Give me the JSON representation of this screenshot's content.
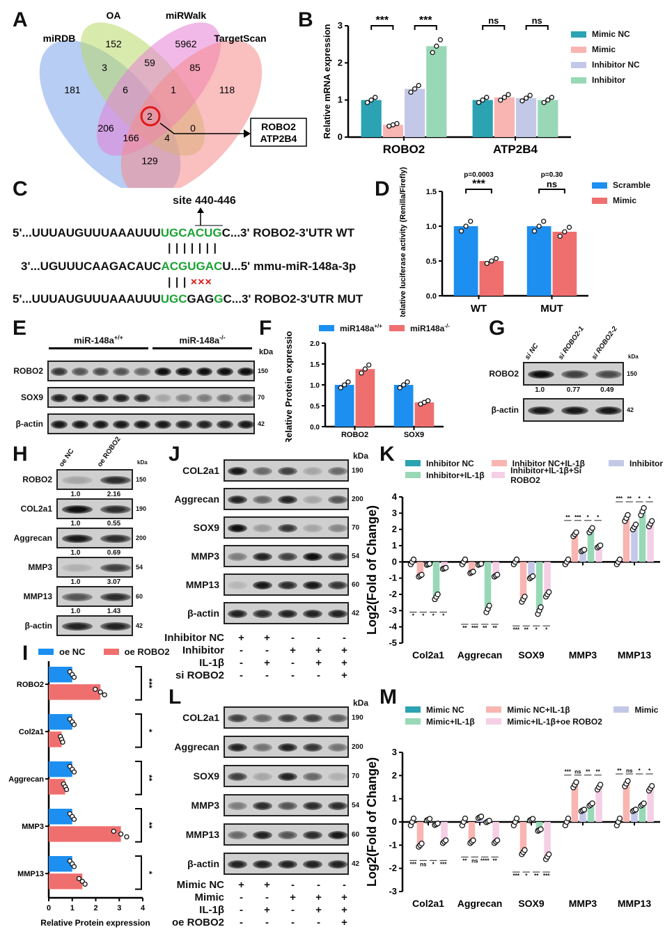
{
  "panels": {
    "A": "A",
    "B": "B",
    "C": "C",
    "D": "D",
    "E": "E",
    "F": "F",
    "G": "G",
    "H": "H",
    "I": "I",
    "J": "J",
    "K": "K",
    "L": "L",
    "M": "M"
  },
  "venn": {
    "sets": [
      {
        "name": "miRDB",
        "color": "#7ba4ea"
      },
      {
        "name": "OA",
        "color": "#b9d96a"
      },
      {
        "name": "miRWalk",
        "color": "#e57fd5"
      },
      {
        "name": "TargetScan",
        "color": "#f58a8a"
      }
    ],
    "counts": {
      "oa_only": "152",
      "mirwalk_only": "5962",
      "mirdb_oa": "3",
      "oa_mirwalk": "59",
      "mirwalk_ts": "85",
      "mirdb_only": "181",
      "mirdb_oa_mirwalk": "6",
      "oa_mirwalk_ts": "1",
      "ts_only": "118",
      "all_four": "2",
      "mirdb_mirwalk": "206",
      "oa_ts": "0",
      "mirdb_mirwalk_ts": "166",
      "mirdb_oa_ts": "4",
      "mirdb_ts": "129"
    },
    "result_genes": [
      "ROBO2",
      "ATP2B4"
    ],
    "highlight_color": "#e01818"
  },
  "sequence": {
    "site_label": "site 440-446",
    "wt": {
      "prefix": "5'...UUUAUGUUUAAAUUU",
      "seed": "UGCACUG",
      "suffix": "C...3' ROBO2-3'UTR WT"
    },
    "mirna": {
      "prefix": "3'...UGUUUCAAGACAUC",
      "seed": "ACGUGAC",
      "suffix": "U...5' mmu-miR-148a-3p"
    },
    "mut": {
      "prefix": "5'...UUUAUGUUUAAAUUU",
      "seed1": "UGC",
      "mutated": "GAG",
      "seed2": "G",
      "suffix": "C...3' ROBO2-3'UTR MUT"
    },
    "pairs_wt": "| | | | | | |",
    "pairs_mut": "| | |",
    "mismatch": "×××"
  },
  "blots": {
    "E": {
      "groups": [
        "miR-148a",
        "miR-148a"
      ],
      "group_sup": [
        "+/+",
        "-/-"
      ],
      "kda_label": "kDa",
      "rows": [
        {
          "label": "ROBO2",
          "kda": "150",
          "bands": [
            0.75,
            0.6,
            0.65,
            0.6,
            0.5,
            0.95,
            0.95,
            0.95,
            0.95,
            0.95
          ]
        },
        {
          "label": "SOX9",
          "kda": "70",
          "bands": [
            0.85,
            0.9,
            0.85,
            0.85,
            0.8,
            0.2,
            0.35,
            0.4,
            0.45,
            0.45
          ]
        },
        {
          "label": "β-actin",
          "kda": "42",
          "bands": [
            0.9,
            0.9,
            0.9,
            0.9,
            0.9,
            0.9,
            0.85,
            0.85,
            0.85,
            0.9
          ]
        }
      ]
    },
    "G": {
      "lanes": [
        "si NC",
        "si ROBO2-1",
        "si ROBO2-2"
      ],
      "kda_label": "kDa",
      "rows": [
        {
          "label": "ROBO2",
          "kda": "150",
          "bands": [
            0.95,
            0.7,
            0.65
          ],
          "ratios": [
            "1.0",
            "0.77",
            "0.49"
          ]
        },
        {
          "label": "β-actin",
          "kda": "42",
          "bands": [
            0.9,
            0.9,
            0.9
          ]
        }
      ]
    },
    "H": {
      "lanes": [
        "oe NC",
        "oe ROBO2"
      ],
      "kda_label": "kDa",
      "rows": [
        {
          "label": "ROBO2",
          "kda": "150",
          "bands": [
            0.2,
            0.8
          ],
          "ratios": [
            "1.0",
            "2.16"
          ]
        },
        {
          "label": "COL2a1",
          "kda": "190",
          "bands": [
            0.95,
            0.8
          ],
          "ratios": [
            "1.0",
            "0.55"
          ]
        },
        {
          "label": "Aggrecan",
          "kda": "200",
          "bands": [
            0.9,
            0.8
          ],
          "ratios": [
            "1.0",
            "0.69"
          ]
        },
        {
          "label": "MMP3",
          "kda": "54",
          "bands": [
            0.15,
            0.7
          ],
          "ratios": [
            "1.0",
            "3.07"
          ]
        },
        {
          "label": "MMP13",
          "kda": "60",
          "bands": [
            0.6,
            0.8
          ],
          "ratios": [
            "1.0",
            "1.43"
          ]
        },
        {
          "label": "β-actin",
          "kda": "42",
          "bands": [
            0.85,
            0.85
          ]
        }
      ]
    },
    "J": {
      "kda_label": "kDa",
      "rows": [
        {
          "label": "COL2a1",
          "kda": "190",
          "bands": [
            0.9,
            0.5,
            0.7,
            0.2,
            0.5
          ]
        },
        {
          "label": "Aggrecan",
          "kda": "200",
          "bands": [
            0.85,
            0.5,
            0.85,
            0.2,
            0.6
          ]
        },
        {
          "label": "SOX9",
          "kda": "70",
          "bands": [
            0.95,
            0.25,
            0.75,
            0.2,
            0.35
          ]
        },
        {
          "label": "MMP3",
          "kda": "54",
          "bands": [
            0.4,
            0.85,
            0.7,
            0.95,
            0.75
          ]
        },
        {
          "label": "MMP13",
          "kda": "60",
          "bands": [
            0.12,
            0.9,
            0.8,
            0.9,
            0.75
          ]
        },
        {
          "label": "β-actin",
          "kda": "42",
          "bands": [
            0.85,
            0.8,
            0.85,
            0.85,
            0.85
          ]
        }
      ],
      "treatments": [
        {
          "label": "Inhibitor NC",
          "signs": [
            "+",
            "+",
            "-",
            "-",
            "-"
          ]
        },
        {
          "label": "Inhibitor",
          "signs": [
            "-",
            "-",
            "+",
            "+",
            "+"
          ]
        },
        {
          "label": "IL-1β",
          "signs": [
            "-",
            "+",
            "-",
            "+",
            "+"
          ]
        },
        {
          "label": "si ROBO2",
          "signs": [
            "-",
            "-",
            "-",
            "-",
            "+"
          ]
        }
      ]
    },
    "L": {
      "kda_label": "kDa",
      "rows": [
        {
          "label": "COL2a1",
          "kda": "190",
          "bands": [
            0.7,
            0.5,
            0.7,
            0.7,
            0.55
          ]
        },
        {
          "label": "Aggrecan",
          "kda": "200",
          "bands": [
            0.85,
            0.45,
            0.85,
            0.75,
            0.45
          ]
        },
        {
          "label": "SOX9",
          "kda": "70",
          "bands": [
            0.7,
            0.2,
            0.85,
            0.5,
            0.15
          ]
        },
        {
          "label": "MMP3",
          "kda": "54",
          "bands": [
            0.4,
            0.8,
            0.6,
            0.8,
            0.8
          ]
        },
        {
          "label": "MMP13",
          "kda": "60",
          "bands": [
            0.5,
            0.85,
            0.6,
            0.8,
            0.9
          ]
        },
        {
          "label": "β-actin",
          "kda": "42",
          "bands": [
            0.85,
            0.85,
            0.85,
            0.85,
            0.85
          ]
        }
      ],
      "treatments": [
        {
          "label": "Mimic NC",
          "signs": [
            "+",
            "+",
            "-",
            "-",
            "-"
          ]
        },
        {
          "label": "Mimic",
          "signs": [
            "-",
            "-",
            "+",
            "+",
            "+"
          ]
        },
        {
          "label": "IL-1β",
          "signs": [
            "-",
            "+",
            "-",
            "+",
            "+"
          ]
        },
        {
          "label": "oe ROBO2",
          "signs": [
            "-",
            "-",
            "-",
            "-",
            "+"
          ]
        }
      ]
    }
  },
  "chart_data": [
    {
      "id": "B",
      "type": "bar",
      "title": "",
      "xlabel": "",
      "ylabel": "Relative mRNA expression",
      "ylim": [
        0,
        3
      ],
      "yticks": [
        0,
        1,
        2,
        3
      ],
      "ytick_labels": [
        "0",
        "1",
        "2",
        "3"
      ],
      "categories": [
        "ROBO2",
        "ATP2B4"
      ],
      "series": [
        {
          "name": "Mimic NC",
          "color": "#2ba3b3",
          "values": [
            1.0,
            1.0
          ]
        },
        {
          "name": "Mimic",
          "color": "#f9b5b1",
          "values": [
            0.33,
            1.07
          ]
        },
        {
          "name": "Inhibitor NC",
          "color": "#c4c8e8",
          "values": [
            1.3,
            1.05
          ]
        },
        {
          "name": "Inhibitor",
          "color": "#98d8b6",
          "values": [
            2.45,
            1.0
          ]
        }
      ],
      "brackets": [
        {
          "cat": 0,
          "from": 0,
          "to": 1,
          "label": "***"
        },
        {
          "cat": 0,
          "from": 2,
          "to": 3,
          "label": "***"
        },
        {
          "cat": 1,
          "from": 0,
          "to": 1,
          "label": "ns"
        },
        {
          "cat": 1,
          "from": 2,
          "to": 3,
          "label": "ns"
        }
      ],
      "legend": "right"
    },
    {
      "id": "D",
      "type": "bar",
      "title": "",
      "xlabel": "",
      "ylabel": "Relative luciferase activity (Renilla/Firefly)",
      "ylim": [
        0,
        1.5
      ],
      "yticks": [
        0,
        0.5,
        1,
        1.5
      ],
      "ytick_labels": [
        "0.0",
        "0.5",
        "1.0",
        "1.5"
      ],
      "categories": [
        "WT",
        "MUT"
      ],
      "series": [
        {
          "name": "Scramble",
          "color": "#1c8ff0",
          "values": [
            1.0,
            1.0
          ]
        },
        {
          "name": "Mimic",
          "color": "#ef6f6f",
          "values": [
            0.5,
            0.92
          ]
        }
      ],
      "brackets": [
        {
          "cat": 0,
          "from": 0,
          "to": 1,
          "label": "***",
          "p": "p=0.0003"
        },
        {
          "cat": 1,
          "from": 0,
          "to": 1,
          "label": "ns",
          "p": "p=0.30"
        }
      ],
      "legend": "right"
    },
    {
      "id": "F",
      "type": "bar",
      "title": "",
      "xlabel": "",
      "ylabel": "Relative Protein expression",
      "ylim": [
        0,
        2
      ],
      "yticks": [
        0,
        0.5,
        1,
        1.5,
        2
      ],
      "ytick_labels": [
        "0.0",
        "0.5",
        "1.0",
        "1.5",
        "2.0"
      ],
      "categories": [
        "ROBO2",
        "SOX9"
      ],
      "series": [
        {
          "name": "miR148a",
          "sup": "+/+",
          "color": "#1c8ff0",
          "values": [
            1.0,
            1.0
          ]
        },
        {
          "name": "miR148a",
          "sup": "-/-",
          "color": "#ef6f6f",
          "values": [
            1.38,
            0.58
          ]
        }
      ],
      "legend": "top"
    },
    {
      "id": "I",
      "type": "bar",
      "orientation": "horizontal",
      "title": "",
      "xlabel": "Relative Protein expression",
      "ylabel": "",
      "xlim": [
        0,
        4
      ],
      "xticks": [
        0,
        1,
        2,
        3,
        4
      ],
      "xtick_labels": [
        "0",
        "1",
        "2",
        "3",
        "4"
      ],
      "categories": [
        "ROBO2",
        "Col2a1",
        "Aggrecan",
        "MMP3",
        "MMP13"
      ],
      "series": [
        {
          "name": "oe NC",
          "color": "#1c8ff0",
          "values": [
            1.0,
            1.0,
            1.0,
            1.0,
            1.0
          ]
        },
        {
          "name": "oe ROBO2",
          "color": "#ef6f6f",
          "values": [
            2.2,
            0.55,
            0.7,
            3.07,
            1.43
          ]
        }
      ],
      "significance": [
        "***",
        "*",
        "**",
        "**",
        "*"
      ],
      "legend": "top"
    },
    {
      "id": "K",
      "type": "bar",
      "title": "",
      "xlabel": "",
      "ylabel": "Log2(Fold of Change)",
      "ylim": [
        -5,
        4
      ],
      "yticks": [
        -5,
        -4,
        -3,
        -2,
        -1,
        0,
        1,
        2,
        3,
        4
      ],
      "ytick_labels": [
        "-5",
        "-4",
        "-3",
        "-2",
        "-1",
        "0",
        "1",
        "2",
        "3",
        "4"
      ],
      "categories": [
        "Col2a1",
        "Aggrecan",
        "SOX9",
        "MMP3",
        "MMP13"
      ],
      "series": [
        {
          "name": "Inhibitor NC",
          "color": "#2ba3b3",
          "values": [
            0,
            0,
            0,
            0,
            0
          ]
        },
        {
          "name": "Inhibitor NC+IL-1β",
          "color": "#f9b5b1",
          "values": [
            -0.85,
            -0.65,
            -2.3,
            1.7,
            2.7
          ]
        },
        {
          "name": "Inhibitor",
          "color": "#c4c8e8",
          "values": [
            -0.15,
            -0.15,
            -0.95,
            0.7,
            2.15
          ]
        },
        {
          "name": "Inhibitor+IL-1β",
          "color": "#98d8b6",
          "values": [
            -2.15,
            -2.9,
            -3.0,
            1.95,
            3.1
          ]
        },
        {
          "name": "Inhibitor+IL-1β+Si ROBO2",
          "color": "#f5cfe6",
          "values": [
            -0.4,
            -0.85,
            -2.0,
            0.95,
            2.35
          ]
        }
      ],
      "significance": [
        [
          "*",
          "*",
          "*",
          "*"
        ],
        [
          "**",
          "***",
          "**",
          "**"
        ],
        [
          "***",
          "**",
          "*",
          "*"
        ],
        [
          "**",
          "***",
          "*",
          "*"
        ],
        [
          "***",
          "**",
          "*",
          "*"
        ]
      ],
      "legend": "top"
    },
    {
      "id": "M",
      "type": "bar",
      "title": "",
      "xlabel": "",
      "ylabel": "Log2(Fold of Change)",
      "ylim": [
        -3,
        3
      ],
      "yticks": [
        -3,
        -2,
        -1,
        0,
        1,
        2,
        3
      ],
      "ytick_labels": [
        "-3",
        "-2",
        "-1",
        "0",
        "1",
        "2",
        "3"
      ],
      "categories": [
        "Col2a1",
        "Aggrecan",
        "SOX9",
        "MMP3",
        "MMP13"
      ],
      "series": [
        {
          "name": "Mimic NC",
          "color": "#2ba3b3",
          "values": [
            0,
            0,
            0,
            0,
            0
          ]
        },
        {
          "name": "Mimic NC+IL-1β",
          "color": "#f9b5b1",
          "values": [
            -1.0,
            -0.85,
            -1.3,
            1.6,
            1.65
          ]
        },
        {
          "name": "Mimic",
          "color": "#c4c8e8",
          "values": [
            0.1,
            0.2,
            0.1,
            0.5,
            0.5
          ]
        },
        {
          "name": "Mimic+IL-1β",
          "color": "#98d8b6",
          "values": [
            -0.1,
            0.02,
            -0.35,
            0.75,
            0.75
          ]
        },
        {
          "name": "Mimic+IL-1β+oe ROBO2",
          "color": "#f5cfe6",
          "values": [
            -0.85,
            -0.85,
            -1.5,
            1.5,
            1.45
          ]
        }
      ],
      "significance": [
        [
          "***",
          "ns",
          "*",
          "***"
        ],
        [
          "**",
          "ns",
          "****",
          "**"
        ],
        [
          "***",
          "*",
          "**",
          "***"
        ],
        [
          "***",
          "ns",
          "**",
          "**"
        ],
        [
          "**",
          "ns",
          "*",
          "*"
        ]
      ],
      "legend": "top"
    }
  ]
}
